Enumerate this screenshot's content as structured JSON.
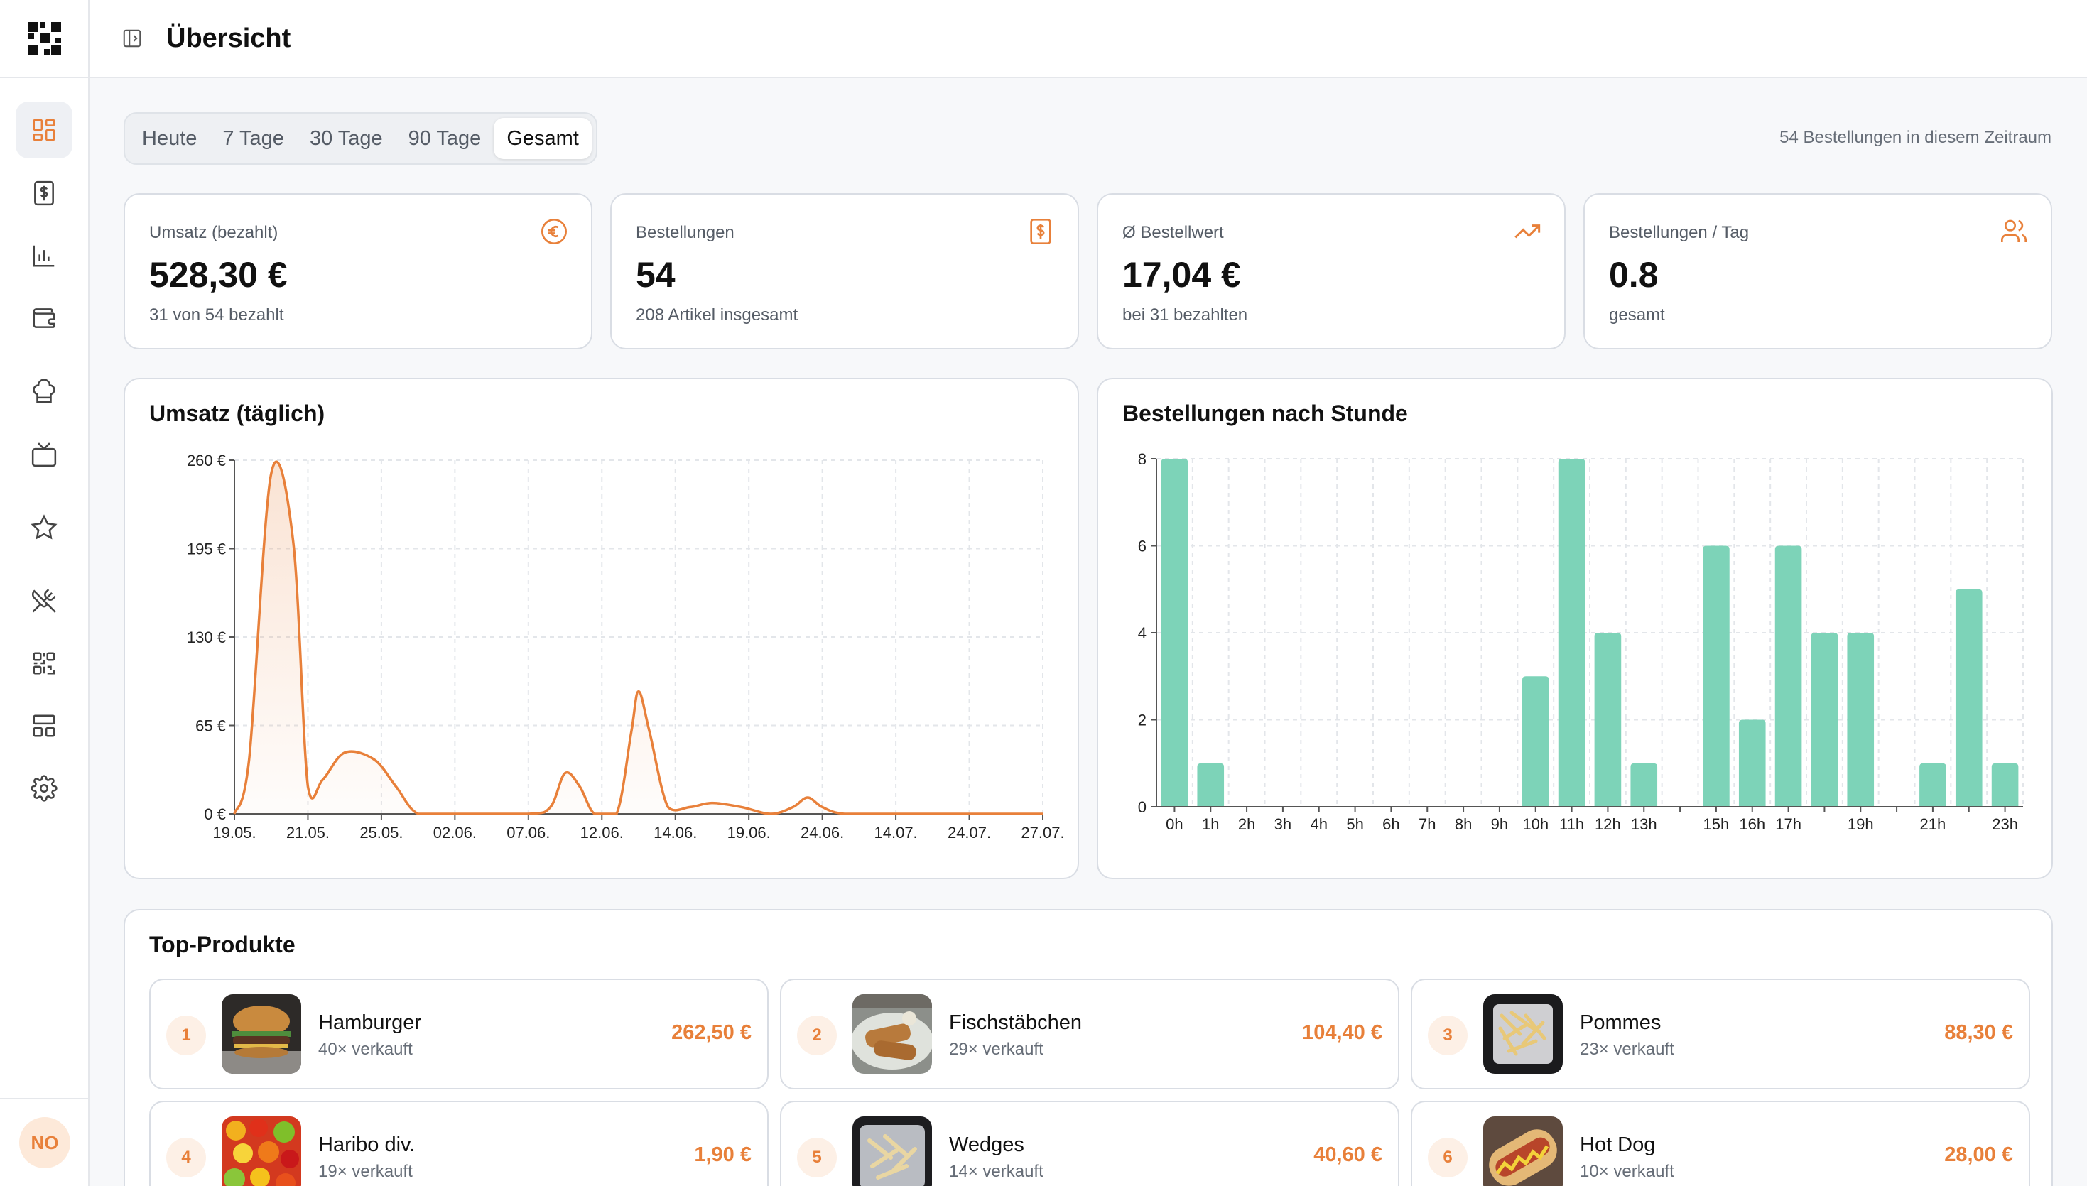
{
  "header": {
    "title": "Übersicht"
  },
  "user": {
    "initials": "NO"
  },
  "sidebar": {
    "items": [
      {
        "name": "dashboard-icon",
        "active": true
      },
      {
        "name": "receipt-icon",
        "active": false
      },
      {
        "name": "bar-chart-icon",
        "active": false
      },
      {
        "name": "wallet-icon",
        "active": false
      },
      {
        "name": "chef-hat-icon",
        "active": false
      },
      {
        "name": "tv-icon",
        "active": false
      },
      {
        "name": "star-icon",
        "active": false
      },
      {
        "name": "utensils-crossed-icon",
        "active": false
      },
      {
        "name": "qr-code-icon",
        "active": false
      },
      {
        "name": "layout-icon",
        "active": false
      },
      {
        "name": "settings-icon",
        "active": false
      }
    ]
  },
  "range": {
    "tabs": [
      "Heute",
      "7 Tage",
      "30 Tage",
      "90 Tage",
      "Gesamt"
    ],
    "active": "Gesamt",
    "info": "54 Bestellungen in diesem Zeitraum"
  },
  "stats": [
    {
      "label": "Umsatz (bezahlt)",
      "value": "528,30 €",
      "sub": "31 von 54 bezahlt",
      "icon": "euro-icon"
    },
    {
      "label": "Bestellungen",
      "value": "54",
      "sub": "208 Artikel insgesamt",
      "icon": "receipt-icon"
    },
    {
      "label": "Ø Bestellwert",
      "value": "17,04 €",
      "sub": "bei 31 bezahlten",
      "icon": "trending-up-icon"
    },
    {
      "label": "Bestellungen / Tag",
      "value": "0.8",
      "sub": "gesamt",
      "icon": "users-icon"
    }
  ],
  "colors": {
    "accent": "#e8803a",
    "bar": "#7dd3b8",
    "grid": "#e3e6ea"
  },
  "chart_data": [
    {
      "type": "area",
      "title": "Umsatz (täglich)",
      "x": [
        "19.05.",
        "21.05.",
        "25.05.",
        "02.06.",
        "07.06.",
        "12.06.",
        "14.06.",
        "19.06.",
        "24.06.",
        "14.07.",
        "24.07.",
        "27.07."
      ],
      "y_ticks": [
        "0 €",
        "65 €",
        "130 €",
        "195 €",
        "260 €"
      ],
      "ylim": [
        0,
        260
      ],
      "series": [
        {
          "values": [
            [
              0,
              0
            ],
            [
              0.2,
              40
            ],
            [
              0.5,
              250
            ],
            [
              0.8,
              200
            ],
            [
              1.0,
              20
            ],
            [
              1.2,
              25
            ],
            [
              1.5,
              45
            ],
            [
              1.9,
              40
            ],
            [
              2.2,
              20
            ],
            [
              2.5,
              0
            ],
            [
              3.0,
              0
            ],
            [
              4.0,
              0
            ],
            [
              4.3,
              5
            ],
            [
              4.5,
              30
            ],
            [
              4.7,
              20
            ],
            [
              4.9,
              0
            ],
            [
              5.2,
              0
            ],
            [
              5.4,
              60
            ],
            [
              5.5,
              90
            ],
            [
              5.65,
              60
            ],
            [
              5.9,
              5
            ],
            [
              6.2,
              5
            ],
            [
              6.5,
              8
            ],
            [
              6.9,
              5
            ],
            [
              7.3,
              0
            ],
            [
              7.6,
              5
            ],
            [
              7.8,
              12
            ],
            [
              8.0,
              5
            ],
            [
              8.3,
              0
            ],
            [
              9.0,
              0
            ],
            [
              10.0,
              0
            ],
            [
              11.0,
              0
            ]
          ]
        }
      ]
    },
    {
      "type": "bar",
      "title": "Bestellungen nach Stunde",
      "categories": [
        "0h",
        "1h",
        "2h",
        "3h",
        "4h",
        "5h",
        "6h",
        "7h",
        "8h",
        "9h",
        "10h",
        "11h",
        "12h",
        "13h",
        "14h",
        "15h",
        "16h",
        "17h",
        "18h",
        "19h",
        "20h",
        "21h",
        "22h",
        "23h"
      ],
      "tick_labels": [
        "0h",
        "1h",
        "2h",
        "3h",
        "4h",
        "5h",
        "6h",
        "7h",
        "8h",
        "9h",
        "10h",
        "11h",
        "12h",
        "13h",
        "",
        "15h",
        "16h",
        "17h",
        "",
        "19h",
        "",
        "21h",
        "",
        "23h"
      ],
      "values": [
        8,
        1,
        0,
        0,
        0,
        0,
        0,
        0,
        0,
        0,
        3,
        8,
        4,
        1,
        0,
        6,
        2,
        6,
        4,
        4,
        0,
        1,
        5,
        1
      ],
      "y_ticks": [
        "0",
        "2",
        "4",
        "6",
        "8"
      ],
      "ylim": [
        0,
        8
      ]
    }
  ],
  "products": {
    "title": "Top-Produkte",
    "items": [
      {
        "rank": "1",
        "name": "Hamburger",
        "sold": "40× verkauft",
        "price": "262,50 €"
      },
      {
        "rank": "2",
        "name": "Fischstäbchen",
        "sold": "29× verkauft",
        "price": "104,40 €"
      },
      {
        "rank": "3",
        "name": "Pommes",
        "sold": "23× verkauft",
        "price": "88,30 €"
      },
      {
        "rank": "4",
        "name": "Haribo div.",
        "sold": "19× verkauft",
        "price": "1,90 €"
      },
      {
        "rank": "5",
        "name": "Wedges",
        "sold": "14× verkauft",
        "price": "40,60 €"
      },
      {
        "rank": "6",
        "name": "Hot Dog",
        "sold": "10× verkauft",
        "price": "28,00 €"
      }
    ]
  }
}
